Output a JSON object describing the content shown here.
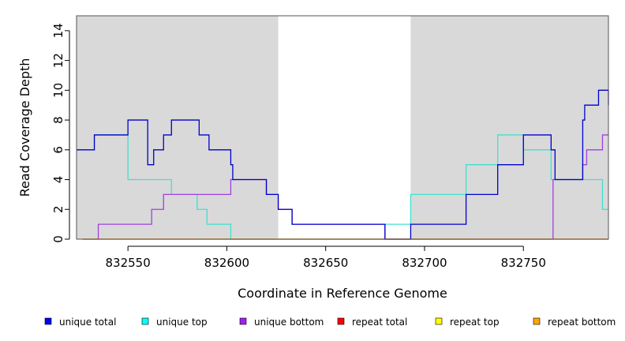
{
  "chart_data": {
    "type": "line",
    "step": "post",
    "xlabel": "Coordinate in Reference Genome",
    "ylabel": "Read Coverage Depth",
    "xlim": [
      832524,
      832793
    ],
    "ylim": [
      0,
      15
    ],
    "x_ticks": [
      832550,
      832600,
      832650,
      832700,
      832750
    ],
    "x_tick_labels": [
      "832550",
      "832600",
      "832650",
      "832700",
      "832750"
    ],
    "y_ticks": [
      0,
      2,
      4,
      6,
      8,
      10,
      12,
      14
    ],
    "y_tick_labels": [
      "0",
      "2",
      "4",
      "6",
      "8",
      "10",
      "12",
      "14"
    ],
    "shaded_regions": [
      {
        "from": 832524,
        "to": 832626,
        "color": "#d9d9d9"
      },
      {
        "from": 832693,
        "to": 832793,
        "color": "#d9d9d9"
      }
    ],
    "series": [
      {
        "name": "unique top",
        "color": "#40e0d0",
        "x": [
          832524,
          832530,
          832533,
          832535,
          832550,
          832570,
          832572,
          832585,
          832590,
          832602,
          832626,
          832633,
          832680,
          832693,
          832721,
          832737,
          832750,
          832764,
          832765,
          832780,
          832790,
          832793
        ],
        "y": [
          6,
          6,
          7,
          7,
          4,
          4,
          3,
          2,
          1,
          0,
          0,
          0,
          1,
          3,
          5,
          7,
          6,
          4,
          4,
          4,
          2,
          2
        ]
      },
      {
        "name": "unique bottom",
        "color": "#a040e0",
        "x": [
          832527,
          832535,
          832560,
          832562,
          832568,
          832602,
          832620,
          832626,
          832633,
          832680,
          832693,
          832764,
          832765,
          832780,
          832782,
          832790,
          832793
        ],
        "y": [
          0,
          1,
          1,
          2,
          3,
          4,
          3,
          2,
          1,
          0,
          0,
          0,
          4,
          5,
          6,
          7,
          7
        ]
      },
      {
        "name": "repeat total",
        "color": "#ff0000",
        "x": [
          832527,
          832793
        ],
        "y": [
          0,
          0
        ]
      },
      {
        "name": "repeat top",
        "color": "#ffff00",
        "x": [
          832527,
          832793
        ],
        "y": [
          0,
          0
        ]
      },
      {
        "name": "repeat bottom",
        "color": "#ffa500",
        "x": [
          832527,
          832793
        ],
        "y": [
          0,
          0
        ]
      },
      {
        "name": "unique total",
        "color": "#0000cd",
        "x": [
          832524,
          832530,
          832533,
          832550,
          832560,
          832563,
          832568,
          832572,
          832586,
          832591,
          832602,
          832603,
          832620,
          832626,
          832633,
          832680,
          832693,
          832721,
          832737,
          832750,
          832764,
          832766,
          832780,
          832781,
          832788,
          832793
        ],
        "y": [
          6,
          6,
          7,
          8,
          5,
          6,
          7,
          8,
          7,
          6,
          5,
          4,
          3,
          2,
          1,
          0,
          1,
          3,
          5,
          7,
          6,
          4,
          8,
          9,
          10,
          9
        ]
      }
    ],
    "legend": {
      "placement": "bottom",
      "items": [
        {
          "label": "unique total",
          "color": "#0000ff"
        },
        {
          "label": "unique top",
          "color": "#00ffff"
        },
        {
          "label": "unique bottom",
          "color": "#a020f0"
        },
        {
          "label": "repeat total",
          "color": "#ff0000"
        },
        {
          "label": "repeat top",
          "color": "#ffff00"
        },
        {
          "label": "repeat bottom",
          "color": "#ffa500"
        }
      ]
    },
    "grid": false
  }
}
